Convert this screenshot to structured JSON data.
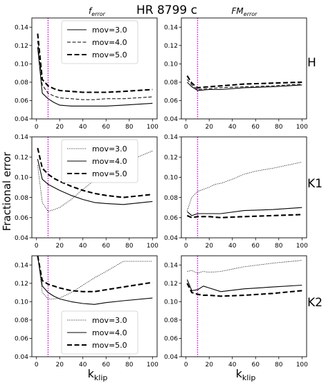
{
  "figure": {
    "title": "HR 8799 c",
    "column_titles": [
      {
        "base": "f",
        "sub": "error"
      },
      {
        "base": "FM",
        "sub": "error"
      }
    ],
    "row_labels": [
      "H",
      "K1",
      "K2"
    ],
    "ylabel": "Fractional error",
    "xlabel": {
      "base": "k",
      "sub": "klip"
    }
  },
  "styles": {
    "mov=3.0": {
      "color": "#000000",
      "width": 0.8,
      "dash": "1.2,1.4"
    },
    "mov=4.0": {
      "color": "#000000",
      "width": 1.0,
      "dash": "5,2.5"
    },
    "mov=5.0": {
      "color": "#000000",
      "width": 2.1,
      "dash": "7,3.5"
    },
    "mov=4.0 solid": {
      "color": "#000000",
      "width": 1.1,
      "dash": ""
    },
    "vline_color": "#cc00cc"
  },
  "chart_data": [
    {
      "type": "line",
      "row": "H",
      "column": "f_error",
      "xlim": [
        -4,
        104
      ],
      "ylim": [
        0.04,
        0.15
      ],
      "xticks": [
        0,
        20,
        40,
        60,
        80,
        100
      ],
      "yticks": [
        0.04,
        0.06,
        0.08,
        0.1,
        0.12,
        0.14
      ],
      "ytick_labels": [
        "0.04",
        "0.06",
        "0.08",
        "0.10",
        "0.12",
        "0.14"
      ],
      "vline": 10,
      "legend": "top-center",
      "series": [
        {
          "name": "mov=3.0",
          "style": "mov=4.0 solid",
          "x": [
            1,
            5,
            10,
            15,
            20,
            30,
            40,
            50,
            60,
            75,
            100
          ],
          "y": [
            0.118,
            0.068,
            0.062,
            0.058,
            0.055,
            0.054,
            0.054,
            0.054,
            0.054,
            0.055,
            0.057
          ]
        },
        {
          "name": "mov=4.0",
          "style": "mov=4.0",
          "x": [
            1,
            5,
            10,
            15,
            20,
            30,
            40,
            50,
            60,
            75,
            100
          ],
          "y": [
            0.125,
            0.077,
            0.068,
            0.065,
            0.063,
            0.062,
            0.061,
            0.061,
            0.062,
            0.062,
            0.064
          ]
        },
        {
          "name": "mov=5.0",
          "style": "mov=5.0",
          "x": [
            1,
            5,
            10,
            15,
            20,
            30,
            40,
            50,
            60,
            75,
            100
          ],
          "y": [
            0.133,
            0.083,
            0.076,
            0.073,
            0.071,
            0.07,
            0.069,
            0.069,
            0.069,
            0.07,
            0.072
          ]
        }
      ]
    },
    {
      "type": "line",
      "row": "H",
      "column": "FM_error",
      "xlim": [
        -4,
        104
      ],
      "ylim": [
        0.04,
        0.15
      ],
      "xticks": [
        0,
        20,
        40,
        60,
        80,
        100
      ],
      "yticks": [
        0.04,
        0.06,
        0.08,
        0.1,
        0.12,
        0.14
      ],
      "ytick_labels": [
        "0.04",
        "0.06",
        "0.08",
        "0.10",
        "0.12",
        "0.14"
      ],
      "vline": 10,
      "series": [
        {
          "style": "mov=4.0 solid",
          "x": [
            1,
            5,
            10,
            20,
            30,
            50,
            75,
            100
          ],
          "y": [
            0.08,
            0.075,
            0.071,
            0.072,
            0.072,
            0.074,
            0.075,
            0.077
          ]
        },
        {
          "style": "mov=4.0",
          "x": [
            1,
            5,
            10,
            20,
            30,
            50,
            75,
            100
          ],
          "y": [
            0.083,
            0.077,
            0.072,
            0.073,
            0.074,
            0.075,
            0.076,
            0.078
          ]
        },
        {
          "style": "mov=5.0",
          "x": [
            1,
            5,
            10,
            20,
            30,
            50,
            75,
            100
          ],
          "y": [
            0.087,
            0.079,
            0.074,
            0.075,
            0.076,
            0.078,
            0.079,
            0.08
          ]
        }
      ]
    },
    {
      "type": "line",
      "row": "K1",
      "column": "f_error",
      "xlim": [
        -4,
        104
      ],
      "ylim": [
        0.04,
        0.14
      ],
      "xticks": [
        0,
        20,
        40,
        60,
        80,
        100
      ],
      "yticks": [
        0.04,
        0.06,
        0.08,
        0.1,
        0.12,
        0.14
      ],
      "ytick_labels": [
        "0.04",
        "0.06",
        "0.08",
        "0.10",
        "0.12",
        "0.14"
      ],
      "vline": 10,
      "legend": "top-center",
      "series": [
        {
          "name": "mov=3.0",
          "style": "mov=3.0",
          "x": [
            1,
            5,
            10,
            15,
            20,
            30,
            40,
            50,
            60,
            75,
            100
          ],
          "y": [
            0.112,
            0.075,
            0.066,
            0.068,
            0.07,
            0.078,
            0.088,
            0.097,
            0.105,
            0.114,
            0.126
          ]
        },
        {
          "name": "mov=4.0",
          "style": "mov=4.0 solid",
          "x": [
            1,
            5,
            10,
            15,
            20,
            30,
            40,
            50,
            60,
            75,
            100
          ],
          "y": [
            0.118,
            0.098,
            0.093,
            0.09,
            0.087,
            0.082,
            0.078,
            0.075,
            0.074,
            0.073,
            0.076
          ]
        },
        {
          "name": "mov=5.0",
          "style": "mov=5.0",
          "x": [
            1,
            5,
            10,
            15,
            20,
            30,
            40,
            50,
            60,
            75,
            100
          ],
          "y": [
            0.129,
            0.109,
            0.103,
            0.099,
            0.096,
            0.091,
            0.087,
            0.084,
            0.082,
            0.08,
            0.083
          ]
        }
      ]
    },
    {
      "type": "line",
      "row": "K1",
      "column": "FM_error",
      "xlim": [
        -4,
        104
      ],
      "ylim": [
        0.04,
        0.14
      ],
      "xticks": [
        0,
        20,
        40,
        60,
        80,
        100
      ],
      "yticks": [
        0.04,
        0.06,
        0.08,
        0.1,
        0.12,
        0.14
      ],
      "ytick_labels": [
        "0.04",
        "0.06",
        "0.08",
        "0.10",
        "0.12",
        "0.14"
      ],
      "vline": 10,
      "series": [
        {
          "style": "mov=3.0",
          "x": [
            1,
            5,
            10,
            20,
            25,
            30,
            40,
            50,
            60,
            75,
            100
          ],
          "y": [
            0.067,
            0.08,
            0.086,
            0.09,
            0.093,
            0.094,
            0.098,
            0.103,
            0.106,
            0.109,
            0.115
          ]
        },
        {
          "style": "mov=4.0 solid",
          "x": [
            1,
            5,
            10,
            20,
            30,
            50,
            75,
            100
          ],
          "y": [
            0.066,
            0.062,
            0.064,
            0.064,
            0.064,
            0.067,
            0.068,
            0.07
          ]
        },
        {
          "style": "mov=5.0",
          "x": [
            1,
            5,
            10,
            20,
            30,
            50,
            75,
            100
          ],
          "y": [
            0.062,
            0.06,
            0.061,
            0.061,
            0.06,
            0.061,
            0.062,
            0.063
          ]
        }
      ]
    },
    {
      "type": "line",
      "row": "K2",
      "column": "f_error",
      "xlim": [
        -4,
        104
      ],
      "ylim": [
        0.04,
        0.15
      ],
      "xticks": [
        0,
        20,
        40,
        60,
        80,
        100
      ],
      "yticks": [
        0.04,
        0.06,
        0.08,
        0.1,
        0.12,
        0.14
      ],
      "ytick_labels": [
        "0.04",
        "0.06",
        "0.08",
        "0.10",
        "0.12",
        "0.14"
      ],
      "vline": 10,
      "legend": "lower-center",
      "series": [
        {
          "name": "mov=3.0",
          "style": "mov=3.0",
          "x": [
            1,
            5,
            10,
            15,
            20,
            30,
            40,
            50,
            60,
            75,
            100
          ],
          "y": [
            0.15,
            0.11,
            0.103,
            0.103,
            0.104,
            0.11,
            0.118,
            0.126,
            0.133,
            0.144,
            0.144
          ]
        },
        {
          "name": "mov=4.0",
          "style": "mov=4.0 solid",
          "x": [
            1,
            5,
            10,
            15,
            20,
            30,
            40,
            50,
            60,
            75,
            100
          ],
          "y": [
            0.15,
            0.117,
            0.11,
            0.106,
            0.103,
            0.1,
            0.098,
            0.097,
            0.099,
            0.101,
            0.104
          ]
        },
        {
          "name": "mov=5.0",
          "style": "mov=5.0",
          "x": [
            1,
            5,
            10,
            15,
            20,
            30,
            40,
            50,
            60,
            75,
            100
          ],
          "y": [
            0.15,
            0.123,
            0.119,
            0.117,
            0.115,
            0.112,
            0.111,
            0.111,
            0.113,
            0.116,
            0.121
          ]
        }
      ]
    },
    {
      "type": "line",
      "row": "K2",
      "column": "FM_error",
      "xlim": [
        -4,
        104
      ],
      "ylim": [
        0.04,
        0.15
      ],
      "xticks": [
        0,
        20,
        40,
        60,
        80,
        100
      ],
      "yticks": [
        0.04,
        0.06,
        0.08,
        0.1,
        0.12,
        0.14
      ],
      "ytick_labels": [
        "0.04",
        "0.06",
        "0.08",
        "0.10",
        "0.12",
        "0.14"
      ],
      "vline": 10,
      "series": [
        {
          "style": "mov=3.0",
          "x": [
            1,
            5,
            10,
            15,
            20,
            30,
            50,
            75,
            100
          ],
          "y": [
            0.133,
            0.134,
            0.131,
            0.133,
            0.132,
            0.133,
            0.138,
            0.142,
            0.145
          ]
        },
        {
          "style": "mov=4.0 solid",
          "x": [
            1,
            5,
            10,
            15,
            20,
            30,
            50,
            75,
            100
          ],
          "y": [
            0.124,
            0.112,
            0.113,
            0.117,
            0.115,
            0.111,
            0.114,
            0.116,
            0.118
          ]
        },
        {
          "style": "mov=5.0",
          "x": [
            1,
            5,
            10,
            15,
            20,
            30,
            50,
            75,
            100
          ],
          "y": [
            0.12,
            0.11,
            0.108,
            0.107,
            0.107,
            0.106,
            0.107,
            0.109,
            0.112
          ]
        }
      ]
    }
  ]
}
